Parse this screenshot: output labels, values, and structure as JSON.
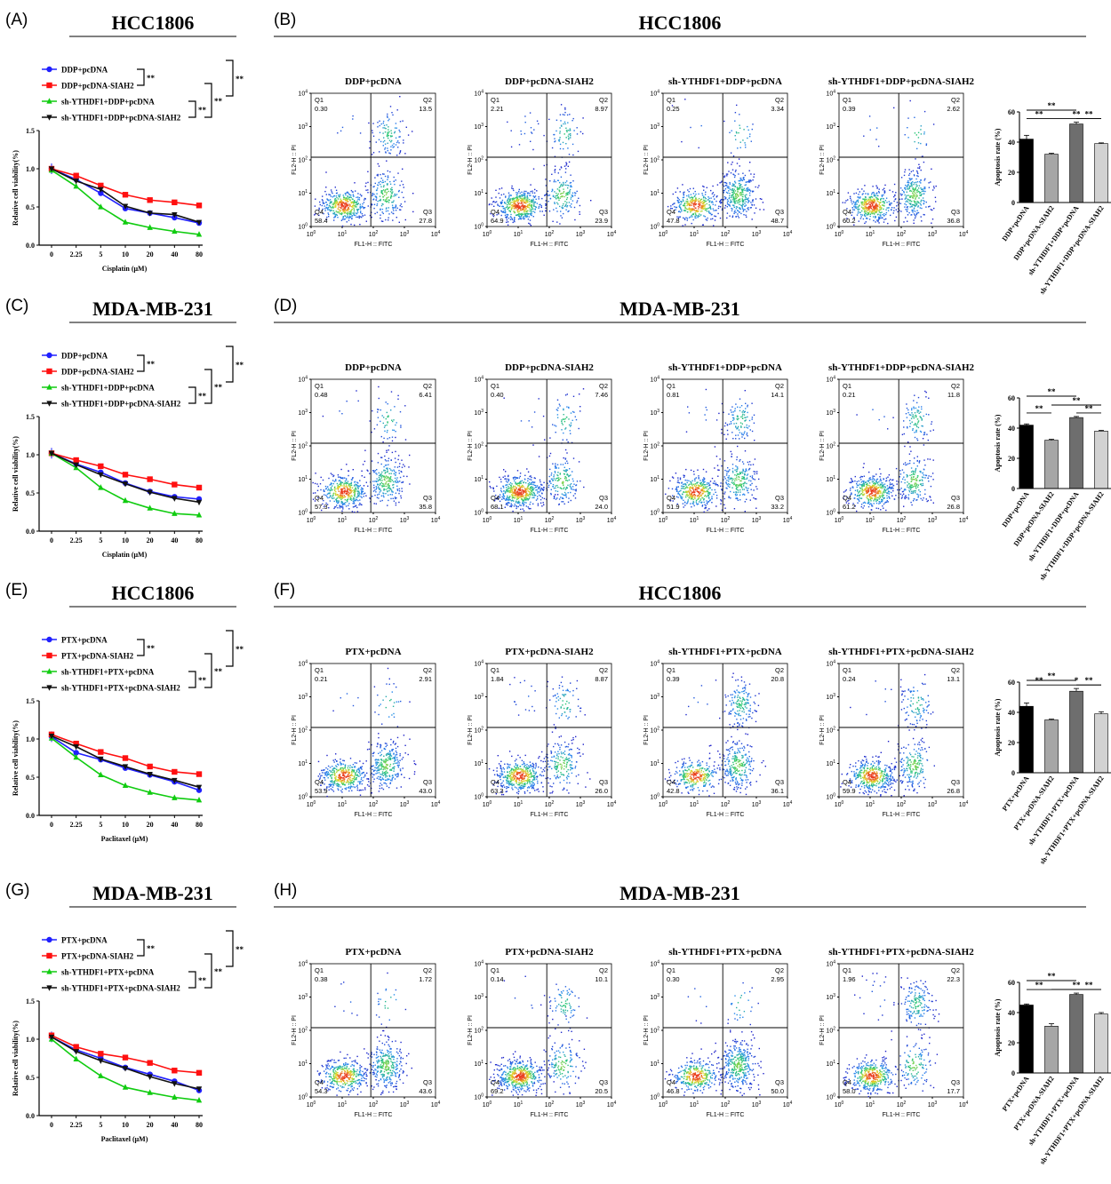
{
  "colors": {
    "blue": "#2020ff",
    "red": "#ff1010",
    "green": "#10cc10",
    "black": "#111111",
    "bar1": "#000000",
    "bar2": "#a6a6a6",
    "bar3": "#6e6e6e",
    "bar4": "#d2d2d2"
  },
  "panels": [
    {
      "line": {
        "label": "(A)",
        "title": "HCC1806",
        "xlabel": "Cisplatin (μM)",
        "ylabel": "Relative cell viability(%)",
        "categories": [
          "0",
          "2.25",
          "5",
          "10",
          "20",
          "40",
          "80"
        ],
        "yticks": [
          "0.0",
          "0.5",
          "1.0",
          "1.5"
        ],
        "ylim": [
          0,
          1.5
        ],
        "series": [
          {
            "name": "DDP+pcDNA",
            "color": "blue",
            "marker": "circle",
            "values": [
              1.0,
              0.86,
              0.68,
              0.48,
              0.42,
              0.36,
              0.29
            ]
          },
          {
            "name": "DDP+pcDNA-SIAH2",
            "color": "red",
            "marker": "square",
            "values": [
              1.0,
              0.91,
              0.78,
              0.66,
              0.59,
              0.56,
              0.52
            ]
          },
          {
            "name": "sh-YTHDF1+DDP+pcDNA",
            "color": "green",
            "marker": "triangle-up",
            "values": [
              0.98,
              0.77,
              0.5,
              0.3,
              0.23,
              0.18,
              0.14
            ]
          },
          {
            "name": "sh-YTHDF1+DDP+pcDNA-SIAH2",
            "color": "black",
            "marker": "triangle-down",
            "values": [
              1.0,
              0.84,
              0.73,
              0.51,
              0.42,
              0.4,
              0.3
            ]
          }
        ],
        "sig": [
          "**",
          "**",
          "**",
          "**"
        ]
      },
      "flow": {
        "label": "(B)",
        "title": "HCC1806",
        "xlabel": "FL1-H :: FITC",
        "ylabel": "FL2-H :: PI",
        "plots": [
          {
            "title": "DDP+pcDNA",
            "q1": "0.30",
            "q2": "13.5",
            "q3": "27.8",
            "q4": "58.4"
          },
          {
            "title": "DDP+pcDNA-SIAH2",
            "q1": "2.21",
            "q2": "8.97",
            "q3": "23.9",
            "q4": "64.9"
          },
          {
            "title": "sh-YTHDF1+DDP+pcDNA",
            "q1": "0.25",
            "q2": "3.34",
            "q3": "48.7",
            "q4": "47.8"
          },
          {
            "title": "sh-YTHDF1+DDP+pcDNA-SIAH2",
            "q1": "0.39",
            "q2": "2.62",
            "q3": "36.8",
            "q4": "60.2"
          }
        ]
      },
      "bar": {
        "ylabel": "Apoptosis rate (%)",
        "yticks": [
          "0",
          "20",
          "40",
          "60"
        ],
        "ylim": [
          0,
          60
        ],
        "categories": [
          "DDP+pcDNA",
          "DDP+pcDNA-SIAH2",
          "sh-YTHDF1+DDP+pcDNA",
          "sh-YTHDF1+DDP+pcDNA-SIAH2"
        ],
        "values": [
          42,
          32,
          52,
          39
        ],
        "errors": [
          2.5,
          0.6,
          1.2,
          0.5
        ],
        "sig": [
          "**",
          "**",
          "**",
          "**"
        ]
      }
    },
    {
      "line": {
        "label": "(C)",
        "title": "MDA-MB-231",
        "xlabel": "Cisplatin (μM)",
        "ylabel": "Relative cell viability(%)",
        "categories": [
          "0",
          "2.25",
          "5",
          "10",
          "20",
          "40",
          "80"
        ],
        "yticks": [
          "0.0",
          "0.5",
          "1.0",
          "1.5"
        ],
        "ylim": [
          0,
          1.5
        ],
        "series": [
          {
            "name": "DDP+pcDNA",
            "color": "blue",
            "marker": "circle",
            "values": [
              1.02,
              0.88,
              0.77,
              0.63,
              0.52,
              0.45,
              0.42
            ]
          },
          {
            "name": "DDP+pcDNA-SIAH2",
            "color": "red",
            "marker": "square",
            "values": [
              1.02,
              0.93,
              0.85,
              0.74,
              0.68,
              0.61,
              0.57
            ]
          },
          {
            "name": "sh-YTHDF1+DDP+pcDNA",
            "color": "green",
            "marker": "triangle-up",
            "values": [
              1.02,
              0.83,
              0.57,
              0.4,
              0.3,
              0.23,
              0.21
            ]
          },
          {
            "name": "sh-YTHDF1+DDP+pcDNA-SIAH2",
            "color": "black",
            "marker": "triangle-down",
            "values": [
              1.02,
              0.87,
              0.74,
              0.62,
              0.51,
              0.43,
              0.38
            ]
          }
        ],
        "sig": [
          "**",
          "**",
          "**",
          "**"
        ]
      },
      "flow": {
        "label": "(D)",
        "title": "MDA-MB-231",
        "xlabel": "FL1-H :: FITC",
        "ylabel": "FL2-H :: PI",
        "plots": [
          {
            "title": "DDP+pcDNA",
            "q1": "0.48",
            "q2": "6.41",
            "q3": "35.8",
            "q4": "57.3"
          },
          {
            "title": "DDP+pcDNA-SIAH2",
            "q1": "0.40",
            "q2": "7.46",
            "q3": "24.0",
            "q4": "68.1"
          },
          {
            "title": "sh-YTHDF1+DDP+pcDNA",
            "q1": "0.81",
            "q2": "14.1",
            "q3": "33.2",
            "q4": "51.9"
          },
          {
            "title": "sh-YTHDF1+DDP+pcDNA-SIAH2",
            "q1": "0.21",
            "q2": "11.8",
            "q3": "26.8",
            "q4": "61.2"
          }
        ]
      },
      "bar": {
        "ylabel": "Apoptosis rate (%)",
        "yticks": [
          "0",
          "20",
          "40",
          "60"
        ],
        "ylim": [
          0,
          60
        ],
        "categories": [
          "DDP+pcDNA",
          "DDP+pcDNA-SIAH2",
          "sh-YTHDF1+DDP+pcDNA",
          "sh-YTHDF1+DDP+pcDNA-SIAH2"
        ],
        "values": [
          42,
          32,
          47,
          38
        ],
        "errors": [
          0.8,
          0.6,
          0.7,
          0.5
        ],
        "sig": [
          "**",
          "**",
          "**",
          "**"
        ]
      }
    },
    {
      "line": {
        "label": "(E)",
        "title": "HCC1806",
        "xlabel": "Paclitaxel (μM)",
        "ylabel": "Relative cell viability(%)",
        "categories": [
          "0",
          "2.25",
          "5",
          "10",
          "20",
          "40",
          "80"
        ],
        "yticks": [
          "0.0",
          "0.5",
          "1.0",
          "1.5"
        ],
        "ylim": [
          0,
          1.5
        ],
        "series": [
          {
            "name": "PTX+pcDNA",
            "color": "blue",
            "marker": "circle",
            "values": [
              1.03,
              0.82,
              0.73,
              0.62,
              0.53,
              0.44,
              0.33
            ]
          },
          {
            "name": "PTX+pcDNA-SIAH2",
            "color": "red",
            "marker": "square",
            "values": [
              1.06,
              0.94,
              0.83,
              0.75,
              0.64,
              0.57,
              0.54
            ]
          },
          {
            "name": "sh-YTHDF1+PTX+pcDNA",
            "color": "green",
            "marker": "triangle-up",
            "values": [
              1.01,
              0.76,
              0.53,
              0.39,
              0.3,
              0.23,
              0.2
            ]
          },
          {
            "name": "sh-YTHDF1+PTX+pcDNA-SIAH2",
            "color": "black",
            "marker": "triangle-down",
            "values": [
              1.04,
              0.9,
              0.74,
              0.64,
              0.54,
              0.46,
              0.37
            ]
          }
        ],
        "sig": [
          "**",
          "**",
          "**",
          "**"
        ]
      },
      "flow": {
        "label": "(F)",
        "title": "HCC1806",
        "xlabel": "FL1-H :: FITC",
        "ylabel": "FL2-H :: PI",
        "plots": [
          {
            "title": "PTX+pcDNA",
            "q1": "0.21",
            "q2": "2.91",
            "q3": "43.0",
            "q4": "53.9"
          },
          {
            "title": "PTX+pcDNA-SIAH2",
            "q1": "1.84",
            "q2": "8.87",
            "q3": "26.0",
            "q4": "63.3"
          },
          {
            "title": "sh-YTHDF1+PTX+pcDNA",
            "q1": "0.39",
            "q2": "20.8",
            "q3": "36.1",
            "q4": "42.8"
          },
          {
            "title": "sh-YTHDF1+PTX+pcDNA-SIAH2",
            "q1": "0.24",
            "q2": "13.1",
            "q3": "26.8",
            "q4": "59.9"
          }
        ]
      },
      "bar": {
        "ylabel": "Apoptosis rate (%)",
        "yticks": [
          "0",
          "20",
          "40",
          "60"
        ],
        "ylim": [
          0,
          60
        ],
        "categories": [
          "PTX+pcDNA",
          "PTX+pcDNA-SIAH2",
          "sh-YTHDF1+PTX+pcDNA",
          "sh-YTHDF1+PTX+pcDNA-SIAH2"
        ],
        "values": [
          44,
          35,
          54,
          39
        ],
        "errors": [
          2.2,
          0.5,
          1.8,
          1.4
        ],
        "sig": [
          "**",
          "**",
          "*",
          "**"
        ]
      }
    },
    {
      "line": {
        "label": "(G)",
        "title": "MDA-MB-231",
        "xlabel": "Paclitaxel (μM)",
        "ylabel": "Relative cell viability(%)",
        "categories": [
          "0",
          "2.25",
          "5",
          "10",
          "20",
          "40",
          "80"
        ],
        "yticks": [
          "0.0",
          "0.5",
          "1.0",
          "1.5"
        ],
        "ylim": [
          0,
          1.5
        ],
        "series": [
          {
            "name": "PTX+pcDNA",
            "color": "blue",
            "marker": "circle",
            "values": [
              1.03,
              0.86,
              0.75,
              0.63,
              0.54,
              0.45,
              0.33
            ]
          },
          {
            "name": "PTX+pcDNA-SIAH2",
            "color": "red",
            "marker": "square",
            "values": [
              1.05,
              0.9,
              0.81,
              0.76,
              0.69,
              0.59,
              0.56
            ]
          },
          {
            "name": "sh-YTHDF1+PTX+pcDNA",
            "color": "green",
            "marker": "triangle-up",
            "values": [
              1.0,
              0.74,
              0.52,
              0.37,
              0.3,
              0.24,
              0.2
            ]
          },
          {
            "name": "sh-YTHDF1+PTX+pcDNA-SIAH2",
            "color": "black",
            "marker": "triangle-down",
            "values": [
              1.03,
              0.84,
              0.72,
              0.62,
              0.51,
              0.42,
              0.35
            ]
          }
        ],
        "sig": [
          "**",
          "**",
          "**",
          "**"
        ]
      },
      "flow": {
        "label": "(H)",
        "title": "MDA-MB-231",
        "xlabel": "FL1-H :: FITC",
        "ylabel": "FL2-H :: PI",
        "plots": [
          {
            "title": "PTX+pcDNA",
            "q1": "0.38",
            "q2": "1.72",
            "q3": "43.6",
            "q4": "54.3"
          },
          {
            "title": "PTX+pcDNA-SIAH2",
            "q1": "0.14",
            "q2": "10.1",
            "q3": "20.5",
            "q4": "69.2"
          },
          {
            "title": "sh-YTHDF1+PTX+pcDNA",
            "q1": "0.30",
            "q2": "2.95",
            "q3": "50.0",
            "q4": "46.8"
          },
          {
            "title": "sh-YTHDF1+PTX+pcDNA-SIAH2",
            "q1": "1.96",
            "q2": "22.3",
            "q3": "17.7",
            "q4": "58.0"
          }
        ]
      },
      "bar": {
        "ylabel": "Apoptosis rate (%)",
        "yticks": [
          "0",
          "20",
          "40",
          "60"
        ],
        "ylim": [
          0,
          60
        ],
        "categories": [
          "PTX+pcDNA",
          "PTX+pcDNA-SIAH2",
          "sh-YTHDF1+PTX+pcDNA",
          "sh-YTHDF1+PTX+pcDNA-SIAH2"
        ],
        "values": [
          45,
          31,
          52,
          39
        ],
        "errors": [
          0.7,
          1.6,
          0.9,
          1.0
        ],
        "sig": [
          "**",
          "**",
          "**",
          "**"
        ]
      }
    }
  ],
  "flow_axis": {
    "x_ticks": [
      "10^0",
      "10^1",
      "10^2",
      "10^3",
      "10^4"
    ],
    "y_ticks": [
      "10^0",
      "10^1",
      "10^2",
      "10^3",
      "10^4"
    ],
    "quadrant_names": [
      "Q1",
      "Q2",
      "Q3",
      "Q4"
    ]
  }
}
